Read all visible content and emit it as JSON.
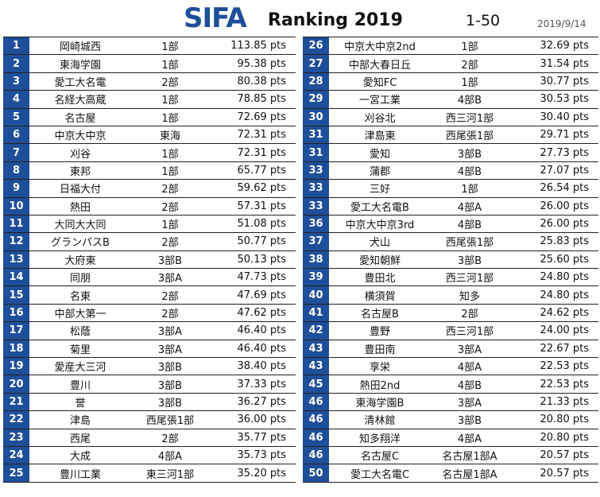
{
  "header": {
    "brand": "SIFA",
    "subtitle": "Ranking 2019",
    "range": "1-50",
    "date": "2019/9/14"
  },
  "colors": {
    "accent": "#1e4f9a"
  },
  "left_rows": [
    {
      "rank": "1",
      "name": "岡崎城西",
      "league": "1部",
      "pts": "113.85 pts"
    },
    {
      "rank": "2",
      "name": "東海学園",
      "league": "1部",
      "pts": "95.38 pts"
    },
    {
      "rank": "3",
      "name": "愛工大名電",
      "league": "2部",
      "pts": "80.38 pts"
    },
    {
      "rank": "4",
      "name": "名経大高蔵",
      "league": "1部",
      "pts": "78.85 pts"
    },
    {
      "rank": "5",
      "name": "名古屋",
      "league": "1部",
      "pts": "72.69 pts"
    },
    {
      "rank": "6",
      "name": "中京大中京",
      "league": "東海",
      "pts": "72.31 pts"
    },
    {
      "rank": "7",
      "name": "刈谷",
      "league": "1部",
      "pts": "72.31 pts"
    },
    {
      "rank": "8",
      "name": "東邦",
      "league": "1部",
      "pts": "65.77 pts"
    },
    {
      "rank": "9",
      "name": "日福大付",
      "league": "2部",
      "pts": "59.62 pts"
    },
    {
      "rank": "10",
      "name": "熱田",
      "league": "2部",
      "pts": "57.31 pts"
    },
    {
      "rank": "11",
      "name": "大同大大同",
      "league": "1部",
      "pts": "51.08 pts"
    },
    {
      "rank": "12",
      "name": "グランパスB",
      "league": "2部",
      "pts": "50.77 pts"
    },
    {
      "rank": "13",
      "name": "大府東",
      "league": "3部B",
      "pts": "50.13 pts"
    },
    {
      "rank": "14",
      "name": "同朋",
      "league": "3部A",
      "pts": "47.73 pts"
    },
    {
      "rank": "15",
      "name": "名東",
      "league": "2部",
      "pts": "47.69 pts"
    },
    {
      "rank": "16",
      "name": "中部大第一",
      "league": "2部",
      "pts": "47.62 pts"
    },
    {
      "rank": "17",
      "name": "松蔭",
      "league": "3部A",
      "pts": "46.40 pts"
    },
    {
      "rank": "18",
      "name": "菊里",
      "league": "3部A",
      "pts": "46.40 pts"
    },
    {
      "rank": "19",
      "name": "愛産大三河",
      "league": "3部B",
      "pts": "38.40 pts"
    },
    {
      "rank": "20",
      "name": "豊川",
      "league": "3部B",
      "pts": "37.33 pts"
    },
    {
      "rank": "21",
      "name": "誉",
      "league": "3部B",
      "pts": "36.27 pts"
    },
    {
      "rank": "22",
      "name": "津島",
      "league": "西尾張1部",
      "pts": "36.00 pts"
    },
    {
      "rank": "23",
      "name": "西尾",
      "league": "2部",
      "pts": "35.77 pts"
    },
    {
      "rank": "24",
      "name": "大成",
      "league": "4部A",
      "pts": "35.73 pts"
    },
    {
      "rank": "25",
      "name": "豊川工業",
      "league": "東三河1部",
      "pts": "35.20 pts"
    }
  ],
  "right_rows": [
    {
      "rank": "26",
      "name": "中京大中京2nd",
      "league": "1部",
      "pts": "32.69 pts"
    },
    {
      "rank": "27",
      "name": "中部大春日丘",
      "league": "2部",
      "pts": "31.54 pts"
    },
    {
      "rank": "28",
      "name": "愛知FC",
      "league": "1部",
      "pts": "30.77 pts"
    },
    {
      "rank": "29",
      "name": "一宮工業",
      "league": "4部B",
      "pts": "30.53 pts"
    },
    {
      "rank": "30",
      "name": "刈谷北",
      "league": "西三河1部",
      "pts": "30.40 pts"
    },
    {
      "rank": "31",
      "name": "津島東",
      "league": "西尾張1部",
      "pts": "29.71 pts"
    },
    {
      "rank": "31",
      "name": "愛知",
      "league": "3部B",
      "pts": "27.73 pts"
    },
    {
      "rank": "33",
      "name": "蒲郡",
      "league": "4部B",
      "pts": "27.07 pts"
    },
    {
      "rank": "33",
      "name": "三好",
      "league": "1部",
      "pts": "26.54 pts"
    },
    {
      "rank": "33",
      "name": "愛工大名電B",
      "league": "4部A",
      "pts": "26.00 pts"
    },
    {
      "rank": "36",
      "name": "中京大中京3rd",
      "league": "4部B",
      "pts": "26.00 pts"
    },
    {
      "rank": "37",
      "name": "犬山",
      "league": "西尾張1部",
      "pts": "25.83 pts"
    },
    {
      "rank": "38",
      "name": "愛知朝鮮",
      "league": "3部B",
      "pts": "25.60 pts"
    },
    {
      "rank": "39",
      "name": "豊田北",
      "league": "西三河1部",
      "pts": "24.80 pts"
    },
    {
      "rank": "40",
      "name": "横須賀",
      "league": "知多",
      "pts": "24.80 pts"
    },
    {
      "rank": "41",
      "name": "名古屋B",
      "league": "2部",
      "pts": "24.62 pts"
    },
    {
      "rank": "42",
      "name": "豊野",
      "league": "西三河1部",
      "pts": "24.00 pts"
    },
    {
      "rank": "43",
      "name": "豊田南",
      "league": "3部A",
      "pts": "22.67 pts"
    },
    {
      "rank": "43",
      "name": "享栄",
      "league": "4部A",
      "pts": "22.53 pts"
    },
    {
      "rank": "45",
      "name": "熱田2nd",
      "league": "4部B",
      "pts": "22.53 pts"
    },
    {
      "rank": "46",
      "name": "東海学園B",
      "league": "3部A",
      "pts": "21.33 pts"
    },
    {
      "rank": "46",
      "name": "清林館",
      "league": "3部B",
      "pts": "20.80 pts"
    },
    {
      "rank": "46",
      "name": "知多翔洋",
      "league": "4部A",
      "pts": "20.80 pts"
    },
    {
      "rank": "46",
      "name": "名古屋C",
      "league": "名古屋1部A",
      "pts": "20.57 pts"
    },
    {
      "rank": "50",
      "name": "愛工大名電C",
      "league": "名古屋1部A",
      "pts": "20.57 pts"
    }
  ]
}
